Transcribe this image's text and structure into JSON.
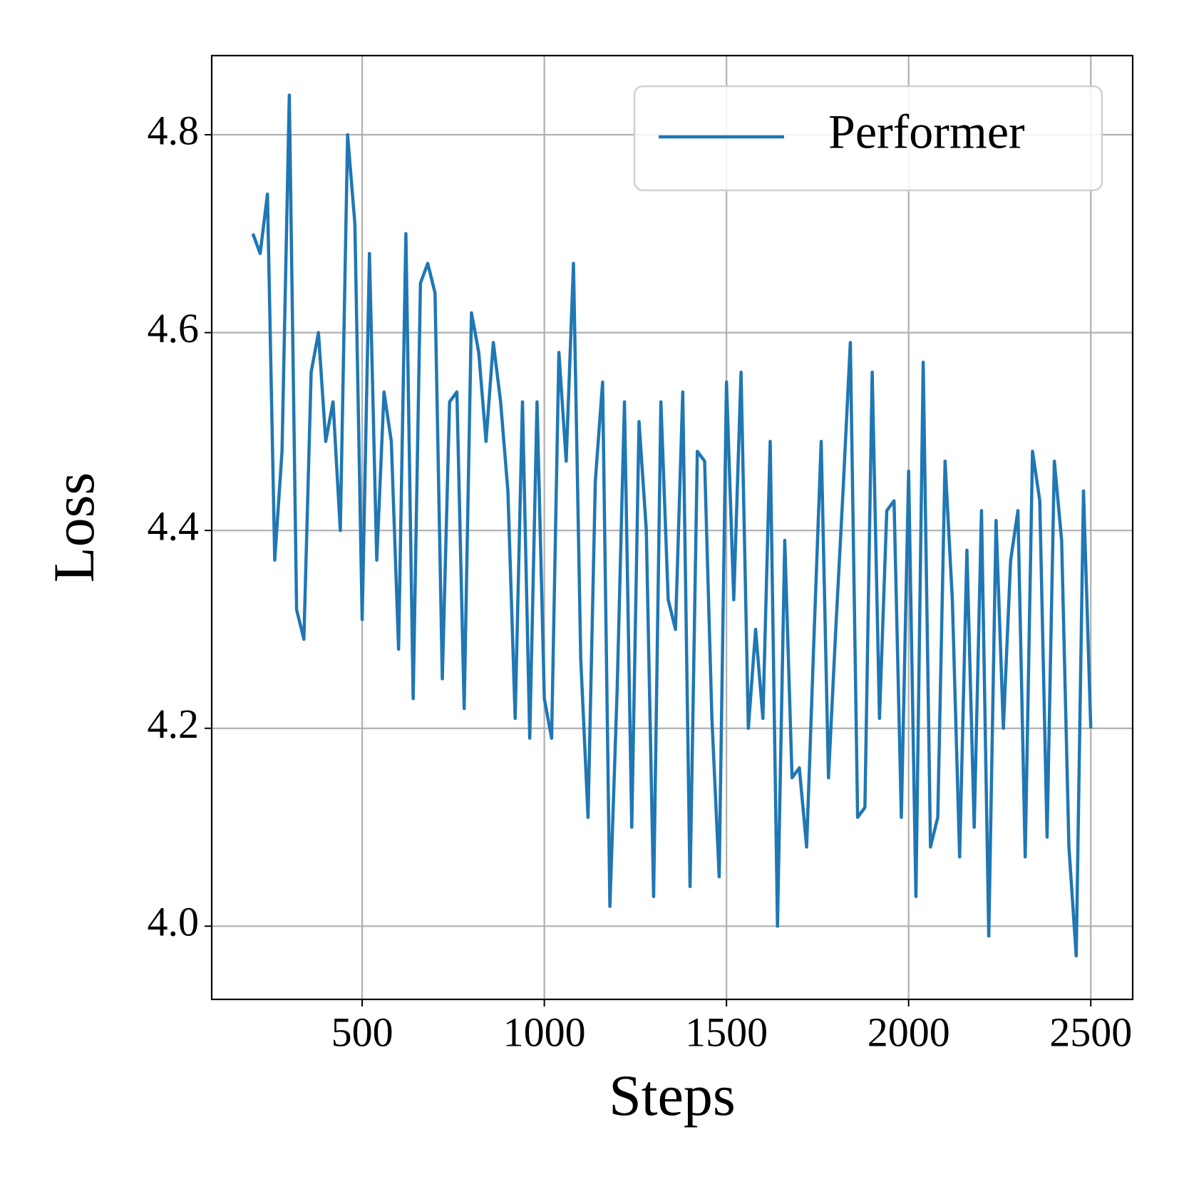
{
  "chart_data": {
    "type": "line",
    "x_label": "Steps",
    "y_label": "Loss",
    "x": [
      200,
      220,
      240,
      260,
      280,
      300,
      320,
      340,
      360,
      380,
      400,
      420,
      440,
      460,
      480,
      500,
      520,
      540,
      560,
      580,
      600,
      620,
      640,
      660,
      680,
      700,
      720,
      740,
      760,
      780,
      800,
      820,
      840,
      860,
      880,
      900,
      920,
      940,
      960,
      980,
      1000,
      1020,
      1040,
      1060,
      1080,
      1100,
      1120,
      1140,
      1160,
      1180,
      1200,
      1220,
      1240,
      1260,
      1280,
      1300,
      1320,
      1340,
      1360,
      1380,
      1400,
      1420,
      1440,
      1460,
      1480,
      1500,
      1520,
      1540,
      1560,
      1580,
      1600,
      1620,
      1640,
      1660,
      1680,
      1700,
      1720,
      1740,
      1760,
      1780,
      1800,
      1820,
      1840,
      1860,
      1880,
      1900,
      1920,
      1940,
      1960,
      1980,
      2000,
      2020,
      2040,
      2060,
      2080,
      2100,
      2120,
      2140,
      2160,
      2180,
      2200,
      2220,
      2240,
      2260,
      2280,
      2300,
      2320,
      2340,
      2360,
      2380,
      2400,
      2420,
      2440,
      2460,
      2480,
      2500
    ],
    "series": [
      {
        "name": "Performer",
        "color": "#1f77b4",
        "values": [
          4.7,
          4.68,
          4.74,
          4.37,
          4.48,
          4.84,
          4.32,
          4.29,
          4.56,
          4.6,
          4.49,
          4.53,
          4.4,
          4.8,
          4.71,
          4.31,
          4.68,
          4.37,
          4.54,
          4.49,
          4.28,
          4.7,
          4.23,
          4.65,
          4.67,
          4.64,
          4.25,
          4.53,
          4.54,
          4.22,
          4.62,
          4.58,
          4.49,
          4.59,
          4.53,
          4.44,
          4.21,
          4.53,
          4.19,
          4.53,
          4.23,
          4.19,
          4.58,
          4.47,
          4.67,
          4.27,
          4.11,
          4.45,
          4.55,
          4.02,
          4.24,
          4.53,
          4.1,
          4.51,
          4.4,
          4.03,
          4.53,
          4.33,
          4.3,
          4.54,
          4.04,
          4.48,
          4.47,
          4.21,
          4.05,
          4.55,
          4.33,
          4.56,
          4.2,
          4.3,
          4.21,
          4.49,
          4.0,
          4.39,
          4.15,
          4.16,
          4.08,
          4.29,
          4.49,
          4.15,
          4.3,
          4.44,
          4.59,
          4.11,
          4.12,
          4.56,
          4.21,
          4.42,
          4.43,
          4.11,
          4.46,
          4.03,
          4.57,
          4.08,
          4.11,
          4.47,
          4.33,
          4.07,
          4.38,
          4.1,
          4.42,
          3.99,
          4.41,
          4.2,
          4.37,
          4.42,
          4.07,
          4.48,
          4.43,
          4.09,
          4.47,
          4.39,
          4.08,
          3.97,
          4.44,
          4.2
        ]
      }
    ],
    "xlim": [
      87,
      2615
    ],
    "ylim": [
      3.926,
      4.88
    ],
    "xticks": [
      500,
      1000,
      1500,
      2000,
      2500
    ],
    "yticks": [
      {
        "value": 4.0,
        "label": "4.0"
      },
      {
        "value": 4.2,
        "label": "4.2"
      },
      {
        "value": 4.4,
        "label": "4.4"
      },
      {
        "value": 4.6,
        "label": "4.6"
      },
      {
        "value": 4.8,
        "label": "4.8"
      }
    ],
    "grid": true,
    "legend": "upper right"
  }
}
